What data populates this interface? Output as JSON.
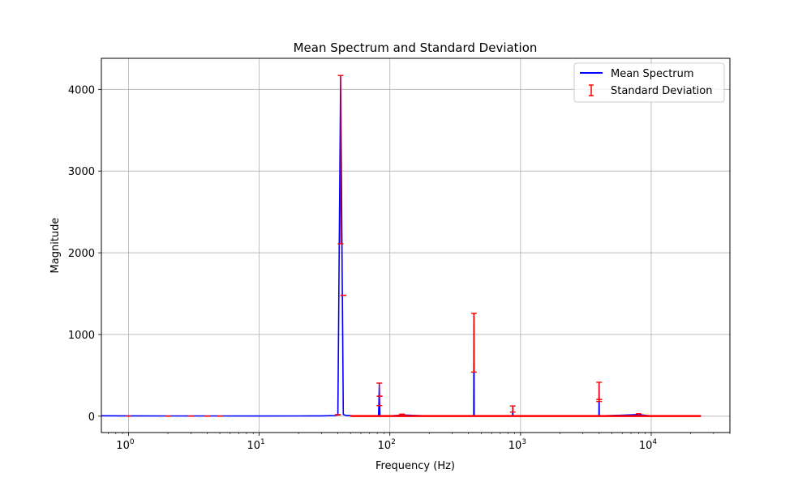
{
  "chart_data": {
    "type": "line",
    "title": "Mean Spectrum and Standard Deviation",
    "xlabel": "Frequency (Hz)",
    "ylabel": "Magnitude",
    "xscale": "log",
    "xlim": [
      0.62,
      40000
    ],
    "ylim": [
      -200,
      4380
    ],
    "grid": true,
    "legend_position": "top-right",
    "x_ticks": [
      {
        "value": 1,
        "base": "10",
        "exp": "0"
      },
      {
        "value": 10,
        "base": "10",
        "exp": "1"
      },
      {
        "value": 100,
        "base": "10",
        "exp": "2"
      },
      {
        "value": 1000,
        "base": "10",
        "exp": "3"
      },
      {
        "value": 10000,
        "base": "10",
        "exp": "4"
      }
    ],
    "y_ticks": [
      0,
      1000,
      2000,
      3000,
      4000
    ],
    "series": [
      {
        "name": "Mean Spectrum",
        "color": "#0000ff",
        "points": [
          [
            0.62,
            5
          ],
          [
            1,
            4
          ],
          [
            2,
            3
          ],
          [
            3,
            3
          ],
          [
            5,
            3
          ],
          [
            10,
            2
          ],
          [
            20,
            3
          ],
          [
            30,
            4
          ],
          [
            38,
            8
          ],
          [
            40,
            15
          ],
          [
            42,
            4170
          ],
          [
            44,
            20
          ],
          [
            46,
            10
          ],
          [
            55,
            3
          ],
          [
            82,
            3
          ],
          [
            83,
            400
          ],
          [
            84,
            3
          ],
          [
            100,
            2
          ],
          [
            124,
            15
          ],
          [
            200,
            2
          ],
          [
            438,
            2
          ],
          [
            440,
            1260
          ],
          [
            442,
            2
          ],
          [
            870,
            2
          ],
          [
            872,
            125
          ],
          [
            874,
            2
          ],
          [
            1300,
            3
          ],
          [
            3980,
            2
          ],
          [
            3990,
            415
          ],
          [
            4000,
            2
          ],
          [
            8000,
            20
          ],
          [
            10000,
            2
          ],
          [
            24000,
            2
          ]
        ]
      }
    ],
    "error_bars": {
      "name": "Standard Deviation",
      "color": "#ff0000",
      "items": [
        {
          "x": 1,
          "low": 0,
          "high": 2
        },
        {
          "x": 2,
          "low": 0,
          "high": 2
        },
        {
          "x": 3,
          "low": 0,
          "high": 2
        },
        {
          "x": 4,
          "low": 0,
          "high": 2
        },
        {
          "x": 5,
          "low": 0,
          "high": 2
        },
        {
          "x": 40,
          "low": 15,
          "high": 20
        },
        {
          "x": 42,
          "low": 2110,
          "high": 4170
        },
        {
          "x": 44,
          "low": 1480,
          "high": 1480
        },
        {
          "x": 83,
          "low": 130,
          "high": 405
        },
        {
          "x": 83.5,
          "low": 245,
          "high": 245
        },
        {
          "x": 124,
          "low": 10,
          "high": 25
        },
        {
          "x": 440,
          "low": 540,
          "high": 1260
        },
        {
          "x": 872,
          "low": 50,
          "high": 125
        },
        {
          "x": 1300,
          "low": 0,
          "high": 5
        },
        {
          "x": 3990,
          "low": 180,
          "high": 415
        },
        {
          "x": 4000,
          "low": 205,
          "high": 205
        },
        {
          "x": 8000,
          "low": 5,
          "high": 30
        }
      ]
    },
    "legend": [
      {
        "label": "Mean Spectrum",
        "kind": "line",
        "color": "#0000ff"
      },
      {
        "label": "Standard Deviation",
        "kind": "errorbar",
        "color": "#ff0000"
      }
    ]
  }
}
